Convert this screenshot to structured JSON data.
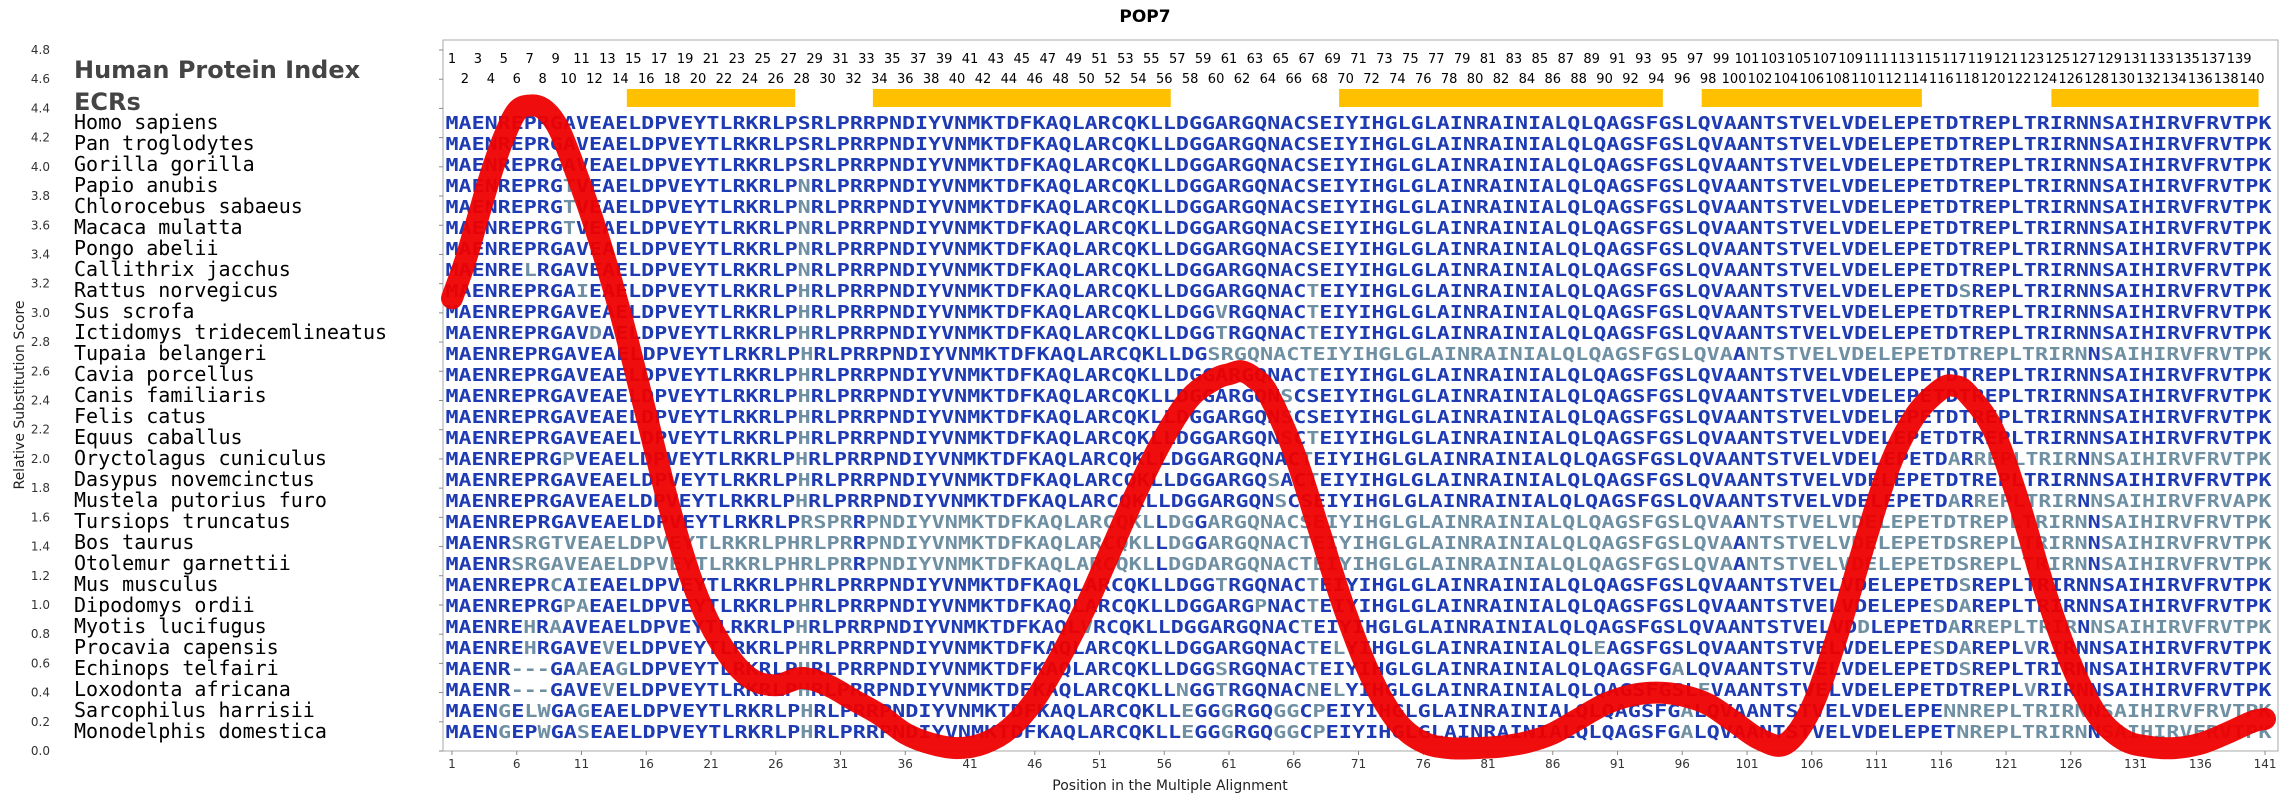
{
  "chart_data": {
    "type": "line",
    "title": "POP7",
    "xlabel": "Position in the Multiple Alignment",
    "ylabel": "Relative Substitution Score",
    "xlim": [
      1,
      141
    ],
    "ylim": [
      0.0,
      4.8
    ],
    "y_ticks": [
      "0.0",
      "0.2",
      "0.4",
      "0.6",
      "0.8",
      "1.0",
      "1.2",
      "1.4",
      "1.6",
      "1.8",
      "2.0",
      "2.2",
      "2.4",
      "2.6",
      "2.8",
      "3.0",
      "3.2",
      "3.4",
      "3.6",
      "3.8",
      "4.0",
      "4.2",
      "4.4",
      "4.6",
      "4.8"
    ],
    "x_ticks": [
      "1",
      "6",
      "11",
      "16",
      "21",
      "26",
      "31",
      "36",
      "41",
      "46",
      "51",
      "56",
      "61",
      "66",
      "71",
      "76",
      "81",
      "86",
      "91",
      "96",
      "101",
      "106",
      "111",
      "116",
      "121",
      "126",
      "131",
      "136",
      "141"
    ],
    "grid": false,
    "header_label": "Human Protein Index",
    "ecr_label": "ECRs",
    "position_numbers": [
      "1",
      "2",
      "3",
      "4",
      "5",
      "6",
      "7",
      "8",
      "9",
      "10",
      "11",
      "12",
      "13",
      "14",
      "15",
      "16",
      "17",
      "18",
      "19",
      "20",
      "21",
      "22",
      "23",
      "24",
      "25",
      "26",
      "27",
      "28",
      "29",
      "30",
      "31",
      "32",
      "33",
      "34",
      "35",
      "36",
      "37",
      "38",
      "39",
      "40",
      "41",
      "42",
      "43",
      "44",
      "45",
      "46",
      "47",
      "48",
      "49",
      "50",
      "51",
      "52",
      "53",
      "54",
      "55",
      "56",
      "57",
      "58",
      "59",
      "60",
      "61",
      "62",
      "63",
      "64",
      "65",
      "66",
      "67",
      "68",
      "69",
      "70",
      "71",
      "72",
      "73",
      "74",
      "75",
      "76",
      "77",
      "78",
      "79",
      "80",
      "81",
      "82",
      "83",
      "84",
      "85",
      "86",
      "87",
      "88",
      "89",
      "90",
      "91",
      "92",
      "93",
      "94",
      "95",
      "96",
      "97",
      "98",
      "99",
      "100",
      "101",
      "102",
      "103",
      "104",
      "105",
      "106",
      "107",
      "108",
      "109",
      "110",
      "111",
      "112",
      "113",
      "114",
      "115",
      "116",
      "117",
      "118",
      "119",
      "120",
      "121",
      "122",
      "123",
      "124",
      "125",
      "126",
      "127",
      "128",
      "129",
      "130",
      "131",
      "132",
      "133",
      "134",
      "135",
      "136",
      "137",
      "138",
      "139",
      "140"
    ],
    "ecrs": [
      [
        15,
        27
      ],
      [
        34,
        56
      ],
      [
        70,
        94
      ],
      [
        98,
        114
      ],
      [
        125,
        140
      ]
    ],
    "series_color": "#ee0000",
    "series": [
      {
        "x": [
          1,
          2,
          3,
          4,
          5,
          6,
          7,
          8,
          9,
          10,
          12,
          14,
          16,
          18,
          20,
          22,
          24,
          26,
          28,
          30,
          32,
          34,
          36,
          38,
          40,
          42,
          44,
          46,
          48,
          50,
          52,
          54,
          56,
          58,
          60,
          61,
          62,
          63,
          64,
          66,
          68,
          70,
          72,
          74,
          76,
          78,
          80,
          82,
          84,
          86,
          88,
          90,
          92,
          94,
          96,
          98,
          100,
          102,
          104,
          106,
          108,
          110,
          112,
          114,
          116,
          117,
          118,
          120,
          122,
          124,
          126,
          128,
          130,
          132,
          134,
          136,
          138,
          140,
          141
        ],
        "y": [
          3.1,
          3.35,
          3.65,
          3.95,
          4.2,
          4.38,
          4.42,
          4.4,
          4.3,
          4.1,
          3.6,
          3.0,
          2.3,
          1.6,
          1.05,
          0.7,
          0.5,
          0.45,
          0.5,
          0.45,
          0.35,
          0.25,
          0.12,
          0.05,
          0.02,
          0.05,
          0.15,
          0.35,
          0.65,
          1.0,
          1.4,
          1.8,
          2.15,
          2.42,
          2.55,
          2.58,
          2.6,
          2.55,
          2.45,
          2.05,
          1.5,
          0.95,
          0.5,
          0.2,
          0.06,
          0.02,
          0.02,
          0.03,
          0.06,
          0.12,
          0.22,
          0.32,
          0.38,
          0.4,
          0.38,
          0.32,
          0.2,
          0.08,
          0.05,
          0.3,
          0.8,
          1.4,
          1.95,
          2.3,
          2.48,
          2.5,
          2.45,
          2.2,
          1.7,
          1.1,
          0.6,
          0.25,
          0.08,
          0.03,
          0.02,
          0.05,
          0.12,
          0.2,
          0.22
        ]
      }
    ],
    "species": [
      "Homo sapiens",
      "Pan troglodytes",
      "Gorilla gorilla",
      "Papio anubis",
      "Chlorocebus sabaeus",
      "Macaca mulatta",
      "Pongo abelii",
      "Callithrix jacchus",
      "Rattus norvegicus",
      "Sus scrofa",
      "Ictidomys tridecemlineatus",
      "Tupaia belangeri",
      "Cavia porcellus",
      "Canis familiaris",
      "Felis catus",
      "Equus caballus",
      "Oryctolagus cuniculus",
      "Dasypus novemcinctus",
      "Mustela putorius furo",
      "Tursiops truncatus",
      "Bos taurus",
      "Otolemur garnettii",
      "Mus musculus",
      "Dipodomys ordii",
      "Myotis lucifugus",
      "Procavia capensis",
      "Echinops telfairi",
      "Loxodonta africana",
      "Sarcophilus harrisii",
      "Monodelphis domestica"
    ],
    "sequences": [
      "MAENREPRGAVEAELDPVEYTLRKRLPSRLPRRPNDIYVNMKTDFKAQLARCQKLLDGGARGQNACSEIYIHGLGLAINRAINIALQLQAGSFGSLQVAANTSTVELVDELEPETDTREPLTRIRNNSAIHIRVFRVTPK",
      "MAENREPRGAVEAELDPVEYTLRKRLPSRLPRRPNDIYVNMKTDFKAQLARCQKLLDGGARGQNACSEIYIHGLGLAINRAINIALQLQAGSFGSLQVAANTSTVELVDELEPETDTREPLTRIRNNSAIHIRVFRVTPK",
      "MAENREPRGAVEAELDPVEYTLRKRLPSRLPRRPNDIYVNMKTDFKAQLARCQKLLDGGARGQNACSEIYIHGLGLAINRAINIALQLQAGSFGSLQVAANTSTVELVDELEPETDTREPLTRIRNNSAIHIRVFRVTPK",
      "MAENREPRGTVEAELDPVEYTLRKRLPNRLPRRPNDIYVNMKTDFKAQLARCQKLLDGGARGQNACSEIYIHGLGLAINRAINIALQLQAGSFGSLQVAANTSTVELVDELEPETDTREPLTRIRNNSAIHIRVFRVTPK",
      "MAENREPRGTVEAELDPVEYTLRKRLPNRLPRRPNDIYVNMKTDFKAQLARCQKLLDGGARGQNACSEIYIHGLGLAINRAINIALQLQAGSFGSLQVAANTSTVELVDELEPETDTREPLTRIRNNSAIHIRVFRVTPK",
      "MAENREPRGTVEAELDPVEYTLRKRLPNRLPRRPNDIYVNMKTDFKAQLARCQKLLDGGARGQNACSEIYIHGLGLAINRAINIALQLQAGSFGSLQVAANTSTVELVDELEPETDTREPLTRIRNNSAIHIRVFRVTPK",
      "MAENREPRGAVEAELDPVEYTLRKRLPNRLPRRPNDIYVNMKTDFKAQLARCQKLLDGGARGQNACSEIYIHGLGLAINRAINIALQLQAGSFGSLQVAANTSTVELVDELEPETDTREPLTRIRNNSAIHIRVFRVTPK",
      "MAENRELRGAVEAELDPVEYTLRKRLPNRLPRRPNDIYVNMKTDFKAQLARCQKLLDGGARGQNACSEIYIHGLGLAINRAINIALQLQAGSFGSLQVAANTSTVELVDELEPETDTREPLTRIRNNSAIHIRVFRVTPK",
      "MAENREPRGAIEAELDPVEYTLRKRLPHRLPRRPNDIYVNMKTDFKAQLARCQKLLDGGARGQNACTEIYIHGLGLAINRAINIALQLQAGSFGSLQVAANTSTVELVDELEPETDSREPLTRIRNNSAIHIRVFRVTPK",
      "MAENREPRGAVEAELDPVEYTLRKRLPHRLPRRPNDIYVNMKTDFKAQLARCQKLLDGGVRGQNACTEIYIHGLGLAINRAINIALQLQAGSFGSLQVAANTSTVELVDELEPETDTREPLTRIRNNSAIHIRVFRVTPK",
      "MAENREPRGAVDAELDPVEYTLRKRLPHRLPRRPNDIYVNMKTDFKAQLARCQKLLDGGTRGQNACTEIYIHGLGLAINRAINIALQLQAGSFGSLQVAANTSTVELVDELEPETDTREPLTRIRNNSAIHIRVFRVTPK",
      "MAENREPRGAVEAELDPVEYTLRKRLPHRLPRRPNDIYVNMKTDFKAQLARCQKLLDGSRGQNACTEIYIHGLGLAINRAINIALQLQAGSFGSLQVAANTSTVELVDELEPETDTREPLTRIRNNSAIHIRVFRVTPK",
      "MAENREPRGAVEAELDPVEYTLRKRLPHRLPRRPNDIYVNMKTDFKAQLARCQKLLDGGARGQNACTEIYIHGLGLAINRAINIALQLQAGSFGSLQVAANTSTVELVDELEPETDTREPLTRIRNNSAIHIRVFRVTPK",
      "MAENREPRGAVEAELDPVEYTLRKRLPHRLPRRPNDIYVNMKTDFKAQLARCQKLLDGGARGQNSCSEIYIHGLGLAINRAINIALQLQAGSFGSLQVAANTSTVELVDELEPETDTREPLTRIRNNSAIHIRVFRVTPK",
      "MAENREPRGAVEAELDPVEYTLRKRLPHRLPRRPNDIYVNMKTDFKAQLARCQKLLDGGARGQNSCSEIYIHGLGLAINRAINIALQLQAGSFGSLQVAANTSTVELVDELEPETDTREPLTRIRNNSAIHIRVFRVTPK",
      "MAENREPRGAVEAELDPVEYTLRKRLPHRLPRRPNDIYVNMKTDFKAQLARCQKLLDGGARGQNSCTEIYIHGLGLAINRAINIALQLQAGSFGSLQVAANTSTVELVDELEPETDTREPLTRIRNNSAIHIRVFRVTPK",
      "MAENREPRGPVEAELDPVEYTLRKRLPHRLPRRPNDIYVNMKTDFKAQLARCQKLLDGGARGQNACTEIYIHGLGLAINRAINIALQLQAGSFGSLQVAANTSTVELVDELEPETDARREPLTRIRNNSAIHIRVFRVTPK",
      "MAENREPRGAVEAELDPVEYTLRKRLPHRLPRRPNDIYVNMKTDFKAQLARCQKLLDGGARGQSACTEIYIHGLGLAINRAINIALQLQAGSFGSLQVAANTSTVELVDELEPETDTREPLTRIRNNSAIHIRVFRVTPK",
      "MAENREPRGAVEAELDPVEYTLRKRLPHRLPRRPNDIYVNMKTDFKAQLARCQKLLDGGARGQNSCSEIYIHGLGLAINRAINIALQLQAGSFGSLQVAANTSTVELVDELEPETDARREPLTRIRNNSAIHIRVFRVAPK",
      "MAENREPRGAVEAELDPVEYTLRKRLPRSPRRPNDIYVNMKTDFKAQLARCQKLLDGGARGQNACSEIYIHGLGLAINRAINIALQLQAGSFGSLQVAANTSTVELVDELEPETDTREPLTRIRNNSAIHIRVFRVTPK",
      "MAENRSRGTVEAELDPVEYTLRKRLPHRLPRRPNDIYVNMKTDFKAQLARCQKLLDGGARGQNACTEIYIHGLGLAINRAINIALQLQAGSFGSLQVAANTSTVELVDELEPETDSREPLTRIRNNSAIHIRVFRVTPK",
      "MAENRSRGAVEAELDPVEYTLRKRLPHRLPRRPNDIYVNMKTDFKAQLARCQKLLDGDARGQNACTEIYIHGLGLAINRAINIALQLQAGSFGSLQVAANTSTVELVDELEPETDSREPLTRIRNNSAIHIRVFRVTPK",
      "MAENREPRCAIEAELDPVEYTLRKRLPHRLPRRPNDIYVNMKTDFKAQLARCQKLLDGGTRGQNACTEIYIHGLGLAINRAINIALQLQAGSFGSLQVAANTSTVELVDELEPETDSREPLTRIRNNSAIHIRVFRVTPK",
      "MAENREPRGPAEAELDPVEYTLRKRLPHRLPRRPNDIYVNMKTDFKAQLARCQKLLDGGARGPNACTEIYIHGLGLAINRAINIALQLQAGSFGSLQVAANTSTVELVDELEPESDAREPLTRIRNNSAIHIRVFRVTPK",
      "MAENREHRAAVEAELDPVEYTLRKRLPHRLPRRPNDIYVNMKTDFKAQLVRCQKLLDGGARGQNACTEIYIHGLGLAINRAINIALQLQAGSFGSLQVAANTSTVELVDDLEPETDARREPLTRIRNNSAIHIRVFRVTPK",
      "MAENREHRGAVEVELDPVEYTLRKRLPHRLPRRPNDIYVNMKTDFKAQLARCQKLLDGGARGQNACTELYIHGLGLAINRAINIALQLEAGSFGSLQVAANTSTVELVDELEPESDAREPLVRIRNNSAIHIRVFRVTPK",
      "MAENR---GAAEAGLDPVEYTLRKRLPHRLPRRPNDIYVNMKTDFKAQLARCQKLLDGGSRGQNACTEIYIHGLGLAINRAINIALQLQAGSFGALQVAANTSTVELVDELEPETDSREPLTRIRNNSAIHIRVFRVTPK",
      "MAENR---GAVEVELDPVEYTLRKRLPHRLPRRPNDIYVNMKTDFKAQLARCQKLLNGGTRGQNACNELYIHGLGLAINRAINIALQLQAGSFGSLEVAANTSTVELVDELEPETDTREPLVRIRNNSAIHIRVFRVTPK",
      "MAENGELWGAGEAELDPVEYTLRKRLPHRLPRRPNDIYVNMKTDFKAQLARCQKLLEGGGRGQGGCPEIYIHGLGLAINRAINIALQLQAGSFGALQVAANTSTVELVDELEPENNREPLTRIRNNSAIHIRVFRVTPK",
      "MAENGEPWGASEAELDPVEYTLRKRLPHRLPRRPNDIYVNMKTDFKAQLARCQKLLEGGGRGQGGCPEIYIHGLGLAINRAINIALQLQAGSFGALQVAANTSTVELVDELEPETNREPLTRIRNNSAIHIRVFRVTPK"
    ]
  }
}
